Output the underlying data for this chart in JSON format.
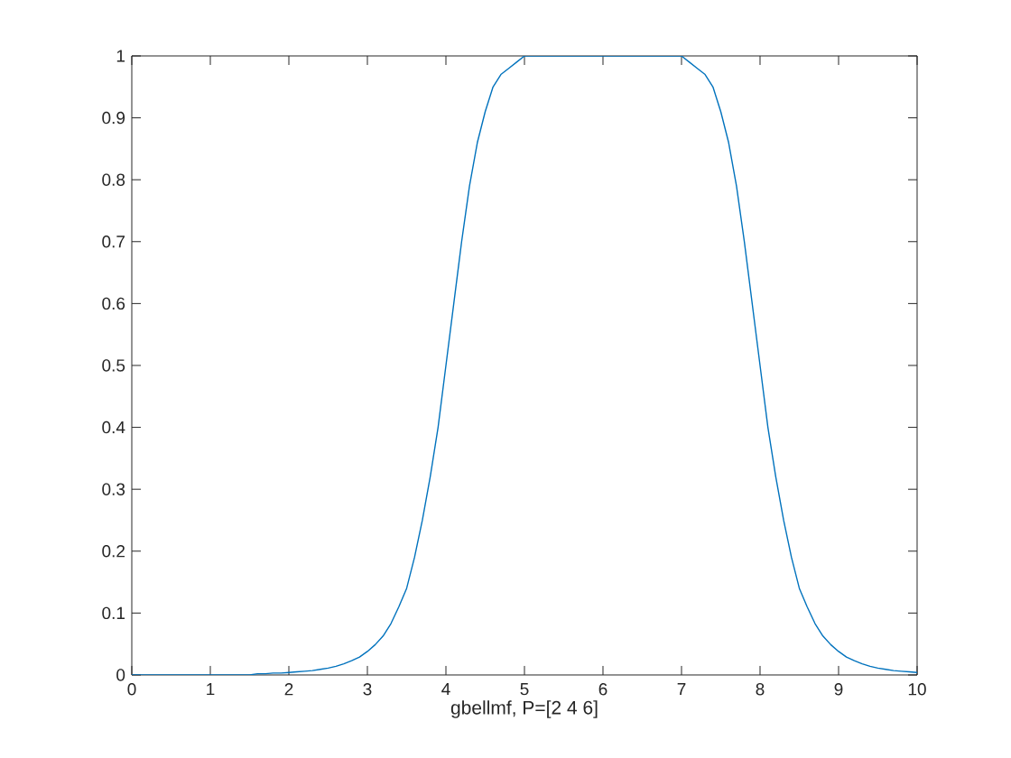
{
  "chart_data": {
    "type": "line",
    "xlabel": "gbellmf, P=[2 4 6]",
    "x": [
      0,
      0.1,
      0.2,
      0.3,
      0.4,
      0.5,
      0.6,
      0.7,
      0.8,
      0.9,
      1,
      1.1,
      1.2,
      1.3,
      1.4,
      1.5,
      1.6,
      1.7,
      1.8,
      1.9,
      2,
      2.1,
      2.2,
      2.3,
      2.4,
      2.5,
      2.6,
      2.7,
      2.8,
      2.9,
      3,
      3.1,
      3.2,
      3.3,
      3.4,
      3.5,
      3.6,
      3.7,
      3.8,
      3.9,
      4,
      4.1,
      4.2,
      4.3,
      4.4,
      4.5,
      4.6,
      4.7,
      4.8,
      4.9,
      5,
      5.1,
      5.2,
      5.3,
      5.4,
      5.5,
      5.6,
      5.7,
      5.8,
      5.9,
      6,
      6.1,
      6.2,
      6.3,
      6.4,
      6.5,
      6.6,
      6.7,
      6.8,
      6.9,
      7,
      7.1,
      7.2,
      7.3,
      7.4,
      7.5,
      7.6,
      7.7,
      7.8,
      7.9,
      8,
      8.1,
      8.2,
      8.3,
      8.4,
      8.5,
      8.6,
      8.7,
      8.8,
      8.9,
      9,
      9.1,
      9.2,
      9.3,
      9.4,
      9.5,
      9.6,
      9.7,
      9.8,
      9.9,
      10
    ],
    "values": [
      0,
      0,
      0,
      0,
      0,
      0,
      0,
      0,
      0,
      0,
      0,
      0,
      0,
      0,
      0,
      0,
      0.002,
      0.002,
      0.003,
      0.003,
      0.004,
      0.005,
      0.006,
      0.007,
      0.009,
      0.011,
      0.014,
      0.018,
      0.023,
      0.029,
      0.038,
      0.049,
      0.063,
      0.083,
      0.11,
      0.14,
      0.19,
      0.25,
      0.32,
      0.4,
      0.5,
      0.6,
      0.7,
      0.79,
      0.86,
      0.91,
      0.95,
      0.97,
      0.98,
      0.99,
      1,
      1,
      1,
      1,
      1,
      1,
      1,
      1,
      1,
      1,
      1,
      1,
      1,
      1,
      1,
      1,
      1,
      1,
      1,
      1,
      1,
      0.99,
      0.98,
      0.97,
      0.95,
      0.91,
      0.86,
      0.79,
      0.7,
      0.6,
      0.5,
      0.4,
      0.32,
      0.25,
      0.19,
      0.14,
      0.11,
      0.083,
      0.063,
      0.049,
      0.038,
      0.029,
      0.023,
      0.018,
      0.014,
      0.011,
      0.009,
      0.007,
      0.006,
      0.005,
      0.004
    ],
    "color": "#0072bd",
    "xlim": [
      0,
      10
    ],
    "ylim": [
      0,
      1
    ],
    "xticks": [
      0,
      1,
      2,
      3,
      4,
      5,
      6,
      7,
      8,
      9,
      10
    ],
    "yticks": [
      0,
      0.1,
      0.2,
      0.3,
      0.4,
      0.5,
      0.6,
      0.7,
      0.8,
      0.9,
      1
    ]
  }
}
